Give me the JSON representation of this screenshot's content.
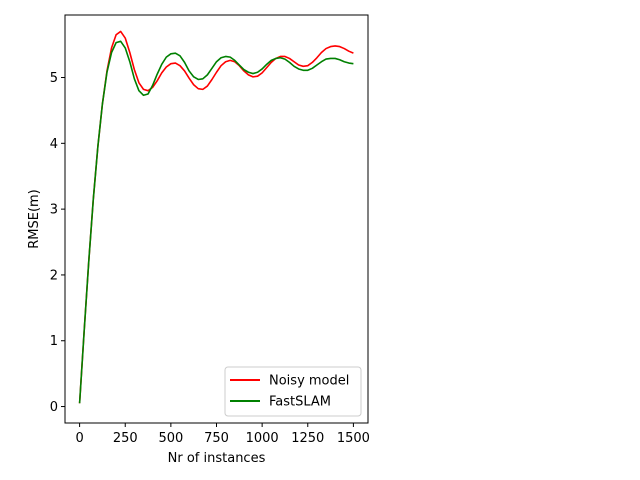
{
  "chart_data": {
    "type": "line",
    "title": "",
    "xlabel": "Nr of instances",
    "ylabel": "RMSE(m)",
    "xlim": [
      -80,
      1580
    ],
    "ylim": [
      -0.25,
      5.95
    ],
    "xticks": [
      0,
      250,
      500,
      750,
      1000,
      1250,
      1500
    ],
    "xtick_labels": [
      "0",
      "250",
      "500",
      "750",
      "1000",
      "1250",
      "1500"
    ],
    "yticks": [
      0,
      1,
      2,
      3,
      4,
      5
    ],
    "ytick_labels": [
      "0",
      "1",
      "2",
      "3",
      "4",
      "5"
    ],
    "grid": false,
    "legend_position": "lower-right",
    "series": [
      {
        "name": "Noisy model",
        "color": "#ff0000",
        "points": [
          [
            0,
            0.05
          ],
          [
            25,
            1.15
          ],
          [
            50,
            2.2
          ],
          [
            75,
            3.15
          ],
          [
            100,
            3.95
          ],
          [
            125,
            4.6
          ],
          [
            150,
            5.1
          ],
          [
            175,
            5.45
          ],
          [
            200,
            5.65
          ],
          [
            225,
            5.7
          ],
          [
            250,
            5.6
          ],
          [
            275,
            5.38
          ],
          [
            300,
            5.12
          ],
          [
            325,
            4.92
          ],
          [
            350,
            4.82
          ],
          [
            375,
            4.8
          ],
          [
            400,
            4.85
          ],
          [
            425,
            4.95
          ],
          [
            450,
            5.07
          ],
          [
            475,
            5.16
          ],
          [
            500,
            5.21
          ],
          [
            525,
            5.22
          ],
          [
            550,
            5.18
          ],
          [
            575,
            5.1
          ],
          [
            600,
            4.99
          ],
          [
            625,
            4.89
          ],
          [
            650,
            4.83
          ],
          [
            675,
            4.82
          ],
          [
            700,
            4.87
          ],
          [
            725,
            4.97
          ],
          [
            750,
            5.08
          ],
          [
            775,
            5.18
          ],
          [
            800,
            5.24
          ],
          [
            825,
            5.26
          ],
          [
            850,
            5.24
          ],
          [
            875,
            5.18
          ],
          [
            900,
            5.1
          ],
          [
            925,
            5.04
          ],
          [
            950,
            5.01
          ],
          [
            975,
            5.02
          ],
          [
            1000,
            5.07
          ],
          [
            1025,
            5.15
          ],
          [
            1050,
            5.23
          ],
          [
            1075,
            5.29
          ],
          [
            1100,
            5.32
          ],
          [
            1125,
            5.32
          ],
          [
            1150,
            5.29
          ],
          [
            1175,
            5.24
          ],
          [
            1200,
            5.19
          ],
          [
            1225,
            5.17
          ],
          [
            1250,
            5.18
          ],
          [
            1275,
            5.23
          ],
          [
            1300,
            5.3
          ],
          [
            1325,
            5.38
          ],
          [
            1350,
            5.44
          ],
          [
            1375,
            5.47
          ],
          [
            1400,
            5.48
          ],
          [
            1425,
            5.47
          ],
          [
            1450,
            5.44
          ],
          [
            1475,
            5.4
          ],
          [
            1500,
            5.37
          ]
        ]
      },
      {
        "name": "FastSLAM",
        "color": "#008000",
        "points": [
          [
            0,
            0.05
          ],
          [
            25,
            1.15
          ],
          [
            50,
            2.2
          ],
          [
            75,
            3.15
          ],
          [
            100,
            3.95
          ],
          [
            125,
            4.6
          ],
          [
            150,
            5.08
          ],
          [
            175,
            5.38
          ],
          [
            200,
            5.53
          ],
          [
            225,
            5.55
          ],
          [
            250,
            5.45
          ],
          [
            275,
            5.24
          ],
          [
            300,
            4.98
          ],
          [
            325,
            4.8
          ],
          [
            350,
            4.73
          ],
          [
            375,
            4.75
          ],
          [
            400,
            4.88
          ],
          [
            425,
            5.05
          ],
          [
            450,
            5.2
          ],
          [
            475,
            5.31
          ],
          [
            500,
            5.36
          ],
          [
            525,
            5.37
          ],
          [
            550,
            5.33
          ],
          [
            575,
            5.23
          ],
          [
            600,
            5.1
          ],
          [
            625,
            5.01
          ],
          [
            650,
            4.97
          ],
          [
            675,
            4.98
          ],
          [
            700,
            5.04
          ],
          [
            725,
            5.14
          ],
          [
            750,
            5.24
          ],
          [
            775,
            5.3
          ],
          [
            800,
            5.32
          ],
          [
            825,
            5.31
          ],
          [
            850,
            5.26
          ],
          [
            875,
            5.19
          ],
          [
            900,
            5.12
          ],
          [
            925,
            5.08
          ],
          [
            950,
            5.06
          ],
          [
            975,
            5.08
          ],
          [
            1000,
            5.13
          ],
          [
            1025,
            5.2
          ],
          [
            1050,
            5.26
          ],
          [
            1075,
            5.29
          ],
          [
            1100,
            5.3
          ],
          [
            1125,
            5.28
          ],
          [
            1150,
            5.23
          ],
          [
            1175,
            5.17
          ],
          [
            1200,
            5.13
          ],
          [
            1225,
            5.11
          ],
          [
            1250,
            5.11
          ],
          [
            1275,
            5.14
          ],
          [
            1300,
            5.19
          ],
          [
            1325,
            5.24
          ],
          [
            1350,
            5.28
          ],
          [
            1375,
            5.29
          ],
          [
            1400,
            5.29
          ],
          [
            1425,
            5.27
          ],
          [
            1450,
            5.24
          ],
          [
            1475,
            5.22
          ],
          [
            1500,
            5.21
          ]
        ]
      }
    ]
  }
}
